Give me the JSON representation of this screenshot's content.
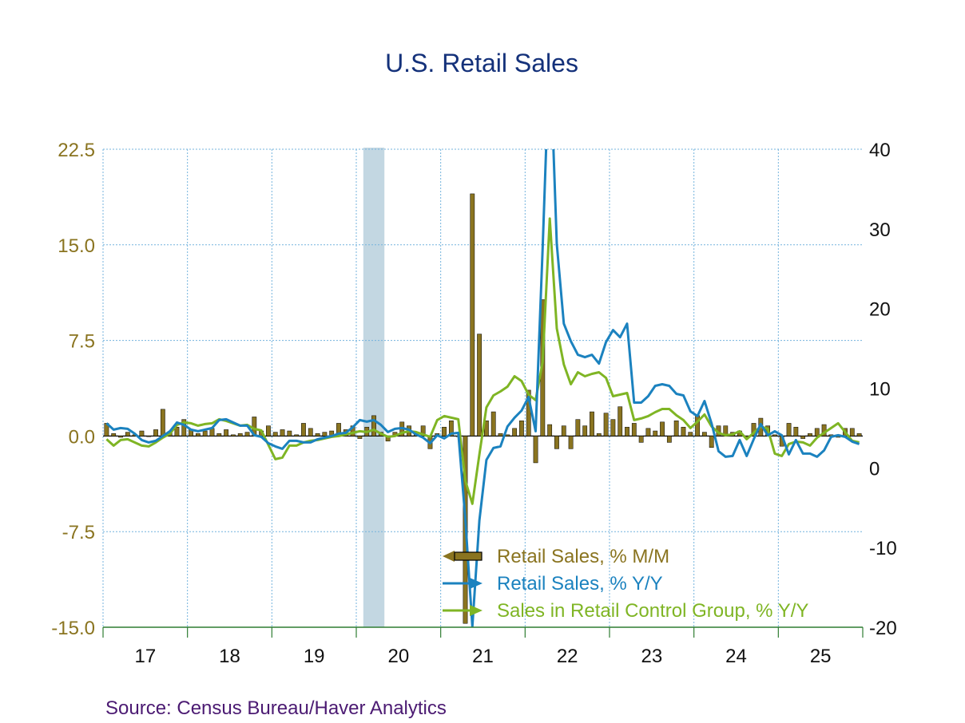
{
  "chart_data": {
    "type": "bar",
    "title": "U.S. Retail Sales",
    "source": "Source:  Census Bureau/Haver Analytics",
    "left_axis": {
      "ticks": [
        "22.5",
        "15.0",
        "7.5",
        "0.0",
        "-7.5",
        "-15.0"
      ],
      "values": [
        22.5,
        15,
        7.5,
        0,
        -7.5,
        -15
      ],
      "range": [
        -15,
        22.5
      ]
    },
    "right_axis": {
      "ticks": [
        "40",
        "30",
        "20",
        "10",
        "0",
        "-10",
        "-20"
      ],
      "values": [
        40,
        30,
        20,
        10,
        0,
        -10,
        -20
      ],
      "range": [
        -20,
        40
      ]
    },
    "x_axis": {
      "labels": [
        "17",
        "18",
        "19",
        "20",
        "21",
        "22",
        "23",
        "24",
        "25"
      ],
      "start": "2017-01",
      "months": 108
    },
    "recession": {
      "from": "2020-02",
      "to": "2020-04"
    },
    "grid": true,
    "legend": "bottom-center",
    "series": [
      {
        "name": "Retail Sales, % M/M",
        "kind": "bar",
        "axis": "left",
        "color": "#8a7420",
        "values": [
          1.0,
          0.2,
          -0.1,
          0.3,
          0.1,
          0.4,
          0.0,
          0.5,
          2.1,
          0.3,
          0.7,
          1.3,
          0.5,
          0.2,
          0.4,
          0.6,
          0.2,
          0.5,
          0.1,
          0.2,
          0.3,
          1.5,
          0.4,
          0.8,
          0.3,
          0.5,
          0.4,
          0.1,
          1.0,
          0.6,
          0.2,
          0.3,
          0.4,
          1.0,
          0.5,
          0.8,
          -0.2,
          0.7,
          1.6,
          0.3,
          -0.4,
          0.3,
          1.1,
          0.8,
          0.1,
          0.8,
          -1.0,
          0.2,
          0.7,
          1.2,
          0.0,
          -14.7,
          19.0,
          8.0,
          1.2,
          1.9,
          0.2,
          0.1,
          0.6,
          1.2,
          3.6,
          -2.1,
          10.7,
          0.9,
          -1.0,
          0.8,
          -1.0,
          1.3,
          0.8,
          1.9,
          0.2,
          1.8,
          1.3,
          2.3,
          0.7,
          1.0,
          -0.5,
          0.6,
          0.4,
          1.1,
          -0.5,
          1.2,
          0.7,
          0.3,
          1.6,
          0.3,
          -0.9,
          0.8,
          0.8,
          0.3,
          0.4,
          -0.1,
          1.0,
          1.4,
          0.8,
          0.1,
          -0.8,
          1.0,
          0.7,
          -0.2,
          0.2,
          0.6,
          0.9,
          0.1,
          -0.1,
          0.6,
          0.6,
          0.2
        ]
      },
      {
        "name": "Retail Sales, % Y/Y",
        "kind": "line",
        "axis": "right",
        "color": "#1b82bf",
        "values": [
          5.6,
          4.8,
          5.0,
          4.9,
          4.3,
          3.5,
          3.2,
          3.4,
          4.0,
          4.6,
          5.7,
          5.4,
          4.8,
          4.6,
          4.8,
          5.0,
          6.0,
          6.1,
          5.7,
          5.3,
          5.3,
          4.1,
          3.9,
          3.1,
          2.7,
          2.4,
          3.4,
          3.4,
          3.2,
          3.2,
          3.6,
          3.8,
          4.0,
          4.3,
          4.4,
          5.1,
          6.0,
          5.8,
          6.0,
          5.4,
          4.5,
          4.9,
          5.0,
          4.8,
          4.2,
          3.8,
          3.1,
          4.1,
          3.7,
          4.3,
          4.4,
          -6.4,
          -19.9,
          -6.6,
          1.0,
          2.5,
          2.7,
          5.2,
          6.3,
          7.2,
          8.9,
          4.6,
          27.6,
          53.2,
          28.1,
          18.1,
          15.9,
          14.2,
          13.9,
          14.2,
          13.1,
          15.8,
          17.3,
          16.4,
          18.1,
          8.2,
          8.2,
          9.0,
          10.3,
          10.5,
          10.3,
          9.3,
          9.1,
          7.1,
          6.5,
          8.4,
          5.6,
          2.1,
          1.4,
          1.5,
          3.5,
          1.5,
          3.6,
          5.5,
          4.1,
          4.6,
          4.1,
          1.7,
          3.5,
          1.8,
          1.8,
          1.4,
          2.2,
          3.9,
          4.1,
          3.9,
          3.3,
          3.0
        ]
      },
      {
        "name": "Sales in Retail Control Group, % Y/Y",
        "kind": "line",
        "axis": "right",
        "color": "#7fb524",
        "values": [
          3.6,
          2.8,
          3.5,
          3.6,
          3.2,
          2.8,
          2.7,
          3.2,
          3.8,
          4.3,
          5.4,
          5.7,
          5.6,
          5.3,
          5.5,
          5.6,
          6.1,
          5.9,
          5.6,
          5.3,
          5.4,
          4.9,
          4.7,
          2.9,
          1.1,
          1.3,
          2.8,
          2.8,
          3.2,
          3.4,
          3.5,
          3.7,
          3.9,
          4.0,
          4.2,
          4.4,
          4.6,
          4.5,
          4.8,
          4.3,
          3.9,
          4.0,
          4.4,
          4.6,
          4.5,
          4.2,
          3.9,
          6.0,
          6.5,
          6.3,
          6.1,
          -1.6,
          -4.5,
          1.7,
          7.6,
          9.1,
          9.6,
          10.2,
          11.5,
          10.9,
          9.2,
          8.5,
          13.3,
          31.3,
          17.5,
          13.0,
          10.5,
          12.0,
          11.5,
          11.8,
          12.0,
          11.3,
          9.0,
          9.2,
          9.4,
          6.0,
          6.2,
          6.5,
          7.0,
          7.4,
          7.4,
          6.6,
          6.0,
          5.0,
          5.8,
          6.7,
          5.2,
          4.4,
          4.1,
          4.2,
          4.6,
          3.6,
          4.4,
          5.2,
          4.9,
          1.8,
          1.5,
          3.0,
          3.3,
          3.2,
          2.8,
          3.8,
          4.4,
          5.0,
          5.6,
          4.5,
          3.4,
          3.2
        ]
      }
    ]
  }
}
